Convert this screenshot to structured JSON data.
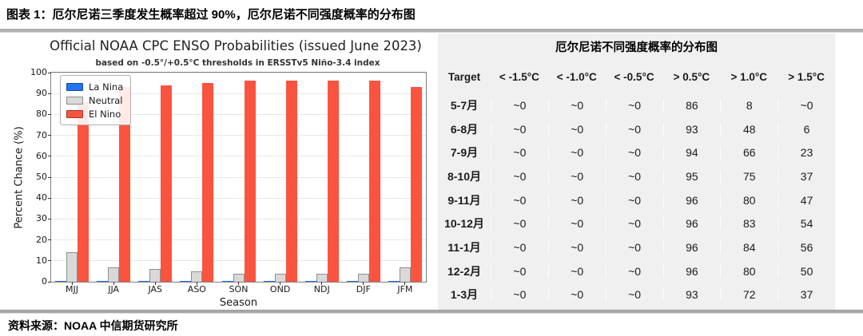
{
  "page": {
    "title": "图表 1：厄尔尼诺三季度发生概率超过 90%，厄尔尼诺不同强度概率的分布图",
    "source": "资料来源：NOAA  中信期货研究所"
  },
  "chart_data": {
    "type": "bar",
    "title": "Official NOAA CPC ENSO Probabilities (issued June 2023)",
    "subtitle": "based on -0.5°/+0.5°C thresholds in ERSSTv5 Niño-3.4 index",
    "xlabel": "Season",
    "ylabel": "Percent Chance (%)",
    "ylim": [
      0,
      100
    ],
    "ytick_step": 10,
    "grid": true,
    "legend_position": "upper left",
    "categories": [
      "MJJ",
      "JJA",
      "JAS",
      "ASO",
      "SON",
      "OND",
      "NDJ",
      "DJF",
      "JFM"
    ],
    "series": [
      {
        "name": "La Nina",
        "color": "#2175f2",
        "values": [
          0,
          0,
          0,
          0,
          0,
          0,
          0,
          0,
          0
        ]
      },
      {
        "name": "Neutral",
        "color": "#d9d9d9",
        "values": [
          14,
          7,
          6,
          5,
          4,
          4,
          4,
          4,
          7
        ]
      },
      {
        "name": "El Nino",
        "color": "#fa5440",
        "values": [
          86,
          93,
          94,
          95,
          96,
          96,
          96,
          96,
          93
        ]
      }
    ]
  },
  "table": {
    "title": "厄尔尼诺不同强度概率的分布图",
    "headers": [
      "Target",
      "< -1.5°C",
      "< -1.0°C",
      "< -0.5°C",
      "> 0.5°C",
      "> 1.0°C",
      "> 1.5°C"
    ],
    "rows": [
      {
        "label": "5-7月",
        "values": [
          "~0",
          "~0",
          "~0",
          "86",
          "8",
          "~0"
        ]
      },
      {
        "label": "6-8月",
        "values": [
          "~0",
          "~0",
          "~0",
          "93",
          "48",
          "6"
        ]
      },
      {
        "label": "7-9月",
        "values": [
          "~0",
          "~0",
          "~0",
          "94",
          "66",
          "23"
        ]
      },
      {
        "label": "8-10月",
        "values": [
          "~0",
          "~0",
          "~0",
          "95",
          "75",
          "37"
        ]
      },
      {
        "label": "9-11月",
        "values": [
          "~0",
          "~0",
          "~0",
          "96",
          "80",
          "47"
        ]
      },
      {
        "label": "10-12月",
        "values": [
          "~0",
          "~0",
          "~0",
          "96",
          "83",
          "54"
        ]
      },
      {
        "label": "11-1月",
        "values": [
          "~0",
          "~0",
          "~0",
          "96",
          "84",
          "56"
        ]
      },
      {
        "label": "12-2月",
        "values": [
          "~0",
          "~0",
          "~0",
          "96",
          "80",
          "50"
        ]
      },
      {
        "label": "1-3月",
        "values": [
          "~0",
          "~0",
          "~0",
          "93",
          "72",
          "37"
        ]
      }
    ]
  }
}
